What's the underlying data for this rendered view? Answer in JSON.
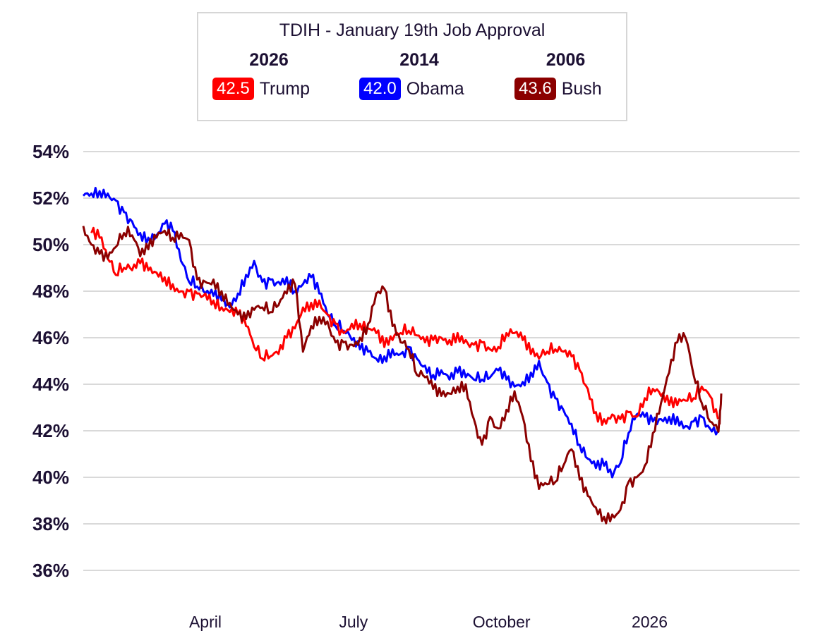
{
  "chart_data": {
    "type": "line",
    "title": "TDIH - January 19th Job Approval",
    "ylim": [
      35,
      55
    ],
    "y_ticks": [
      36,
      38,
      40,
      42,
      44,
      46,
      48,
      50,
      52,
      54
    ],
    "y_tick_labels": [
      "36%",
      "38%",
      "40%",
      "42%",
      "44%",
      "46%",
      "48%",
      "50%",
      "52%",
      "54%"
    ],
    "x_tick_labels": [
      "April",
      "July",
      "October",
      "2026"
    ],
    "x_tick_positions": [
      75,
      166,
      257,
      348
    ],
    "xlim": [
      0,
      392
    ],
    "grid": true,
    "legend_position": "top-center",
    "series": [
      {
        "name": "Trump",
        "year": "2026",
        "value_label": "42.5",
        "color": "#ff0000",
        "x": [
          5,
          10,
          15,
          20,
          25,
          30,
          35,
          40,
          45,
          50,
          55,
          60,
          65,
          70,
          75,
          80,
          85,
          90,
          95,
          100,
          105,
          110,
          115,
          120,
          125,
          130,
          135,
          140,
          145,
          150,
          155,
          160,
          165,
          170,
          175,
          180,
          185,
          190,
          195,
          200,
          205,
          210,
          215,
          220,
          225,
          230,
          235,
          240,
          245,
          250,
          255,
          260,
          265,
          270,
          275,
          280,
          285,
          290,
          295,
          300,
          305,
          310,
          315,
          320,
          325,
          330,
          335,
          340,
          345,
          350,
          355,
          360,
          365,
          370
        ],
        "y": [
          50.5,
          50.3,
          49.4,
          48.7,
          49.0,
          48.9,
          49.2,
          48.9,
          48.8,
          48.6,
          48.3,
          48.0,
          48.0,
          47.9,
          47.9,
          47.6,
          47.3,
          47.1,
          47.0,
          46.5,
          45.6,
          45.1,
          45.2,
          45.3,
          46.0,
          46.4,
          47.3,
          47.5,
          47.6,
          47.0,
          46.6,
          46.2,
          46.6,
          46.6,
          46.4,
          46.2,
          45.6,
          45.9,
          46.2,
          46.3,
          46.1,
          45.8,
          45.9,
          46.0,
          45.9,
          46.2,
          45.9,
          45.7,
          45.8,
          45.5,
          45.6,
          46.2,
          46.2,
          45.9,
          45.3,
          45.1,
          45.4,
          45.5,
          45.4,
          45.2,
          44.6,
          43.8,
          42.8,
          42.5,
          42.7,
          42.5,
          42.8,
          42.6,
          43.4,
          43.8,
          43.5,
          43.1,
          43.1,
          43.3
        ],
        "x_tail": [
          375,
          380,
          385,
          390
        ],
        "y_tail": [
          43.4,
          43.9,
          43.5,
          42.5
        ]
      },
      {
        "name": "Obama",
        "year": "2014",
        "value_label": "42.0",
        "color": "#0000ff",
        "x": [
          0,
          5,
          10,
          15,
          20,
          25,
          30,
          35,
          40,
          45,
          50,
          55,
          60,
          65,
          70,
          75,
          80,
          85,
          90,
          95,
          100,
          105,
          110,
          115,
          120,
          125,
          130,
          135,
          140,
          145,
          150,
          155,
          160,
          165,
          170,
          175,
          180,
          185,
          190,
          195,
          200,
          205,
          210,
          215,
          220,
          225,
          230,
          235,
          240,
          245,
          250,
          255,
          260,
          265,
          270,
          275,
          280,
          285,
          290,
          295,
          300,
          305,
          310,
          315,
          320,
          325,
          330,
          335,
          340,
          345,
          350,
          355,
          360,
          365,
          370,
          375,
          380,
          385,
          390
        ],
        "y": [
          52.1,
          52.2,
          52.3,
          52.2,
          51.9,
          51.4,
          51.0,
          50.5,
          50.3,
          50.4,
          50.9,
          50.6,
          49.3,
          48.4,
          48.2,
          47.9,
          47.8,
          47.6,
          47.3,
          47.9,
          48.7,
          49.3,
          48.4,
          48.5,
          48.4,
          48.6,
          48.0,
          48.3,
          48.6,
          47.9,
          47.0,
          46.5,
          46.3,
          45.9,
          45.5,
          45.4,
          45.1,
          45.2,
          45.5,
          45.3,
          45.6,
          45.1,
          44.8,
          44.4,
          44.6,
          44.2,
          44.5,
          44.3,
          44.2,
          44.2,
          44.3,
          44.6,
          44.2,
          43.9,
          44.1,
          44.5,
          45.0,
          44.1,
          43.4,
          42.9,
          42.3,
          41.4,
          40.8,
          40.4,
          40.5,
          40.0,
          40.6,
          41.9,
          42.7,
          42.6,
          42.4,
          42.5,
          42.6,
          42.6,
          42.2,
          42.4,
          42.6,
          42.1,
          42.0
        ]
      },
      {
        "name": "Bush",
        "year": "2006",
        "value_label": "43.6",
        "color": "#8b0000",
        "x": [
          0,
          5,
          10,
          15,
          20,
          25,
          30,
          35,
          40,
          45,
          50,
          55,
          60,
          65,
          70,
          75,
          80,
          85,
          90,
          95,
          100,
          105,
          110,
          115,
          120,
          125,
          130,
          135,
          140,
          145,
          150,
          155,
          160,
          165,
          170,
          175,
          180,
          185,
          190,
          195,
          200,
          205,
          210,
          215,
          220,
          225,
          230,
          235,
          240,
          245,
          250,
          255,
          260,
          265,
          270,
          275,
          280,
          285,
          290,
          295,
          300,
          305,
          310,
          315,
          320,
          325,
          330,
          335,
          340,
          345,
          350,
          355,
          360,
          365,
          370,
          375,
          380,
          385,
          390
        ],
        "y": [
          50.8,
          50.0,
          49.6,
          49.4,
          49.9,
          50.5,
          50.4,
          49.5,
          49.8,
          50.3,
          50.6,
          50.3,
          50.5,
          50.2,
          48.5,
          48.4,
          48.5,
          48.0,
          47.5,
          47.0,
          46.8,
          47.2,
          47.3,
          47.1,
          47.4,
          47.9,
          48.3,
          45.4,
          46.5,
          46.9,
          46.7,
          45.8,
          45.8,
          45.7,
          46.0,
          46.6,
          47.9,
          48.1,
          46.5,
          45.8,
          45.5,
          44.4,
          44.3,
          43.8,
          43.5,
          43.6,
          43.9,
          44.0,
          42.5,
          41.4,
          42.6,
          42.1,
          42.9,
          43.7,
          42.6,
          40.7,
          39.5,
          39.7,
          39.8,
          40.5,
          41.2,
          39.9,
          39.2,
          38.7,
          38.3,
          38.4,
          38.6,
          39.8,
          40.0,
          40.5,
          41.9,
          43.2,
          44.5,
          45.8,
          46.0,
          44.4,
          43.2,
          42.4,
          42.0
        ],
        "x_tail": [
          391,
          392
        ],
        "y_tail": [
          42.3,
          43.6
        ]
      }
    ]
  }
}
